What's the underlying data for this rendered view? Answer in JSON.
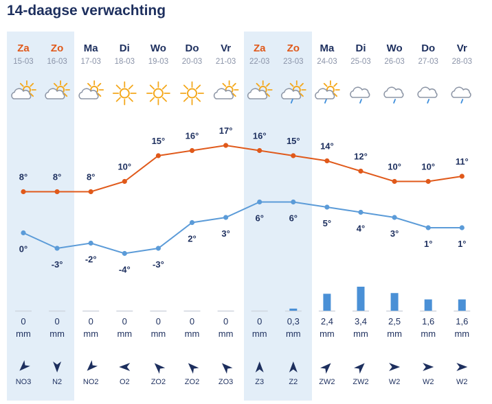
{
  "title": "14-daagse verwachting",
  "colors": {
    "weekend_bg": "#e3eef8",
    "weekend_day": "#e0591a",
    "weekday_day": "#1d2f5e",
    "max_line": "#e0591a",
    "min_line": "#5b9bd8",
    "rain_bar": "#4a90d6",
    "text": "#1d2f5e"
  },
  "chart_data": {
    "type": "line",
    "days": [
      "Za",
      "Zo",
      "Ma",
      "Di",
      "Wo",
      "Do",
      "Vr",
      "Za",
      "Zo",
      "Ma",
      "Di",
      "Wo",
      "Do",
      "Vr"
    ],
    "dates": [
      "15-03",
      "16-03",
      "17-03",
      "18-03",
      "19-03",
      "20-03",
      "21-03",
      "22-03",
      "23-03",
      "24-03",
      "25-03",
      "26-03",
      "27-03",
      "28-03"
    ],
    "weekend": [
      true,
      true,
      false,
      false,
      false,
      false,
      false,
      true,
      true,
      false,
      false,
      false,
      false,
      false
    ],
    "icons": [
      "sun-cloud-icon",
      "sun-cloud-icon",
      "sun-cloud-icon",
      "sun-icon",
      "sun-icon",
      "sun-icon",
      "sun-cloud-icon",
      "sun-cloud-icon",
      "sun-cloud-rain-icon",
      "sun-cloud-rain-icon",
      "cloud-rain-icon",
      "cloud-rain-icon",
      "cloud-rain-icon",
      "cloud-rain-icon"
    ],
    "series": [
      {
        "name": "max",
        "values": [
          8,
          8,
          8,
          10,
          15,
          16,
          17,
          16,
          15,
          14,
          12,
          10,
          10,
          11
        ],
        "labels": [
          "8°",
          "8°",
          "8°",
          "10°",
          "15°",
          "16°",
          "17°",
          "16°",
          "15°",
          "14°",
          "12°",
          "10°",
          "10°",
          "11°"
        ]
      },
      {
        "name": "min",
        "values": [
          0,
          -3,
          -2,
          -4,
          -3,
          2,
          3,
          6,
          6,
          5,
          4,
          3,
          1,
          1
        ],
        "labels": [
          "0°",
          "-3°",
          "-2°",
          "-4°",
          "-3°",
          "2°",
          "3°",
          "6°",
          "6°",
          "5°",
          "4°",
          "3°",
          "1°",
          "1°"
        ]
      }
    ],
    "rain": {
      "values": [
        0,
        0,
        0,
        0,
        0,
        0,
        0,
        0,
        0.3,
        2.4,
        3.4,
        2.5,
        1.6,
        1.6
      ],
      "labels": [
        "0",
        "0",
        "0",
        "0",
        "0",
        "0",
        "0",
        "0",
        "0,3",
        "2,4",
        "3,4",
        "2,5",
        "1,6",
        "1,6"
      ],
      "unit": "mm"
    },
    "wind": {
      "labels": [
        "NO3",
        "N2",
        "NO2",
        "O2",
        "ZO2",
        "ZO2",
        "ZO3",
        "Z3",
        "Z2",
        "ZW2",
        "ZW2",
        "W2",
        "W2",
        "W2"
      ],
      "from_deg": [
        45,
        0,
        45,
        90,
        135,
        135,
        135,
        180,
        180,
        225,
        225,
        270,
        270,
        270
      ]
    }
  }
}
